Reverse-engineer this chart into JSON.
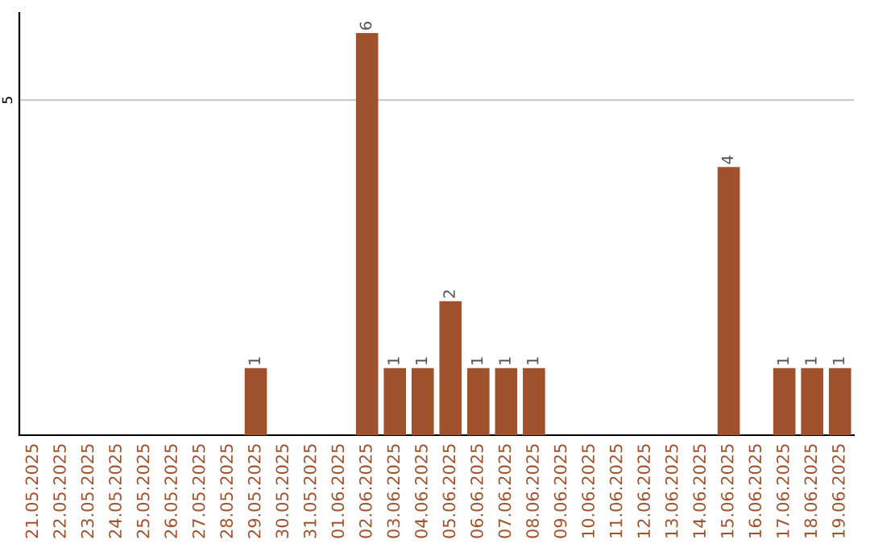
{
  "chart_data": {
    "type": "bar",
    "categories": [
      "21.05.2025",
      "22.05.2025",
      "23.05.2025",
      "24.05.2025",
      "25.05.2025",
      "26.05.2025",
      "27.05.2025",
      "28.05.2025",
      "29.05.2025",
      "30.05.2025",
      "31.05.2025",
      "01.06.2025",
      "02.06.2025",
      "03.06.2025",
      "04.06.2025",
      "05.06.2025",
      "06.06.2025",
      "07.06.2025",
      "08.06.2025",
      "09.06.2025",
      "10.06.2025",
      "11.06.2025",
      "12.06.2025",
      "13.06.2025",
      "14.06.2025",
      "15.06.2025",
      "16.06.2025",
      "17.06.2025",
      "18.06.2025",
      "19.06.2025"
    ],
    "values": [
      0,
      0,
      0,
      0,
      0,
      0,
      0,
      0,
      1,
      0,
      0,
      0,
      6,
      1,
      1,
      2,
      1,
      1,
      1,
      0,
      0,
      0,
      0,
      0,
      0,
      4,
      0,
      1,
      1,
      1
    ],
    "value_labels": [
      null,
      null,
      null,
      null,
      null,
      null,
      null,
      null,
      "1",
      null,
      null,
      null,
      "6",
      "1",
      "1",
      "2",
      "1",
      "1",
      "1",
      null,
      null,
      null,
      null,
      null,
      null,
      "4",
      null,
      "1",
      "1",
      "1"
    ],
    "color": "#a0522d",
    "ylim": [
      0,
      6.3
    ],
    "yticks": [
      5
    ],
    "grid": "y"
  }
}
